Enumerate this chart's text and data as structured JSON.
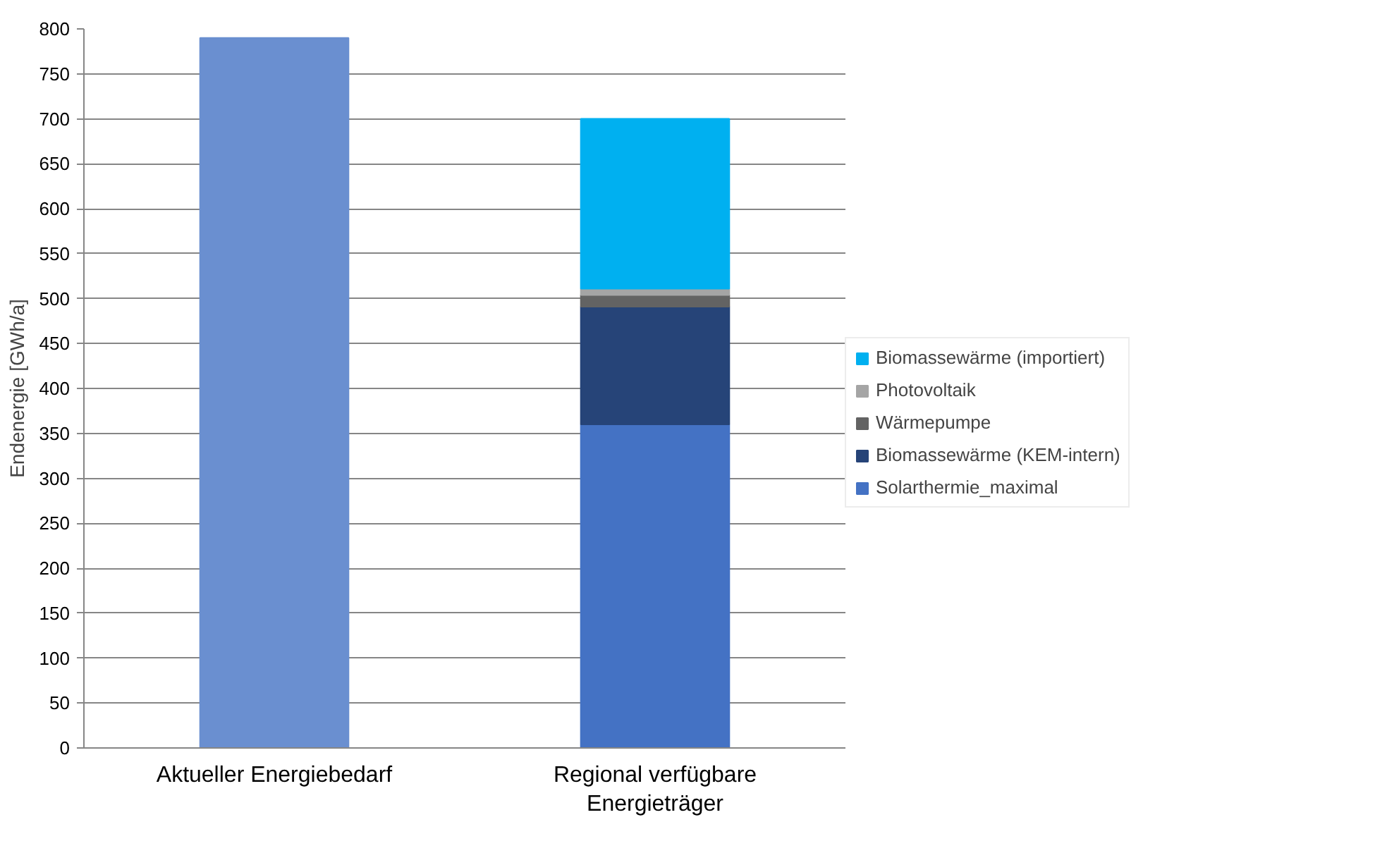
{
  "chart_data": {
    "type": "bar",
    "stacked": true,
    "ylabel": "Endenergie [GWh/a]",
    "categories": [
      "Aktueller Energiebedarf",
      "Regional verfügbare Energieträger"
    ],
    "series": [
      {
        "color": "#6a8fd0",
        "values": [
          790,
          null
        ]
      },
      {
        "name": "Solarthermie_maximal",
        "color": "#4472c4",
        "values": [
          null,
          360
        ]
      },
      {
        "name": "Biomassewärme (KEM-intern)",
        "color": "#264478",
        "values": [
          null,
          131
        ]
      },
      {
        "name": "Wärmepumpe",
        "color": "#636363",
        "values": [
          null,
          13
        ]
      },
      {
        "name": "Photovoltaik",
        "color": "#a5a5a5",
        "values": [
          null,
          7
        ]
      },
      {
        "name": "Biomassewärme (importiert)",
        "color": "#00b0f0",
        "values": [
          null,
          189
        ]
      }
    ],
    "ylim": [
      0,
      800
    ],
    "yticks": [
      0,
      50,
      100,
      150,
      200,
      250,
      300,
      350,
      400,
      450,
      500,
      550,
      600,
      650,
      700,
      750,
      800
    ],
    "grid": "y",
    "legend": "right"
  }
}
